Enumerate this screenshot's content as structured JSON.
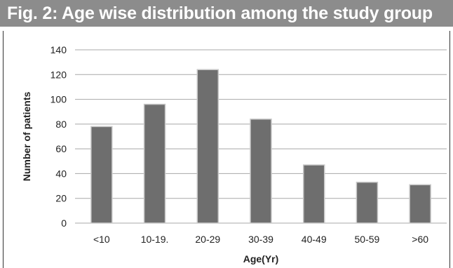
{
  "figure": {
    "title": "Fig. 2: Age wise distribution among the study group"
  },
  "colors": {
    "title_bar": "#8c8c8c",
    "bar_fill": "#6e6e6e",
    "bar_stroke": "#c8c8c8",
    "grid": "#a8a8a8"
  },
  "chart_data": {
    "type": "bar",
    "title": "",
    "xlabel": "Age(Yr)",
    "ylabel": "Number of patients",
    "categories": [
      "<10",
      "10-19.",
      "20-29",
      "30-39",
      "40-49",
      "50-59",
      ">60"
    ],
    "values": [
      78,
      96,
      124,
      84,
      47,
      33,
      31
    ],
    "ylim": [
      0,
      140
    ],
    "yticks": [
      0,
      20,
      40,
      60,
      80,
      100,
      120,
      140
    ],
    "grid": true,
    "legend": "none"
  }
}
